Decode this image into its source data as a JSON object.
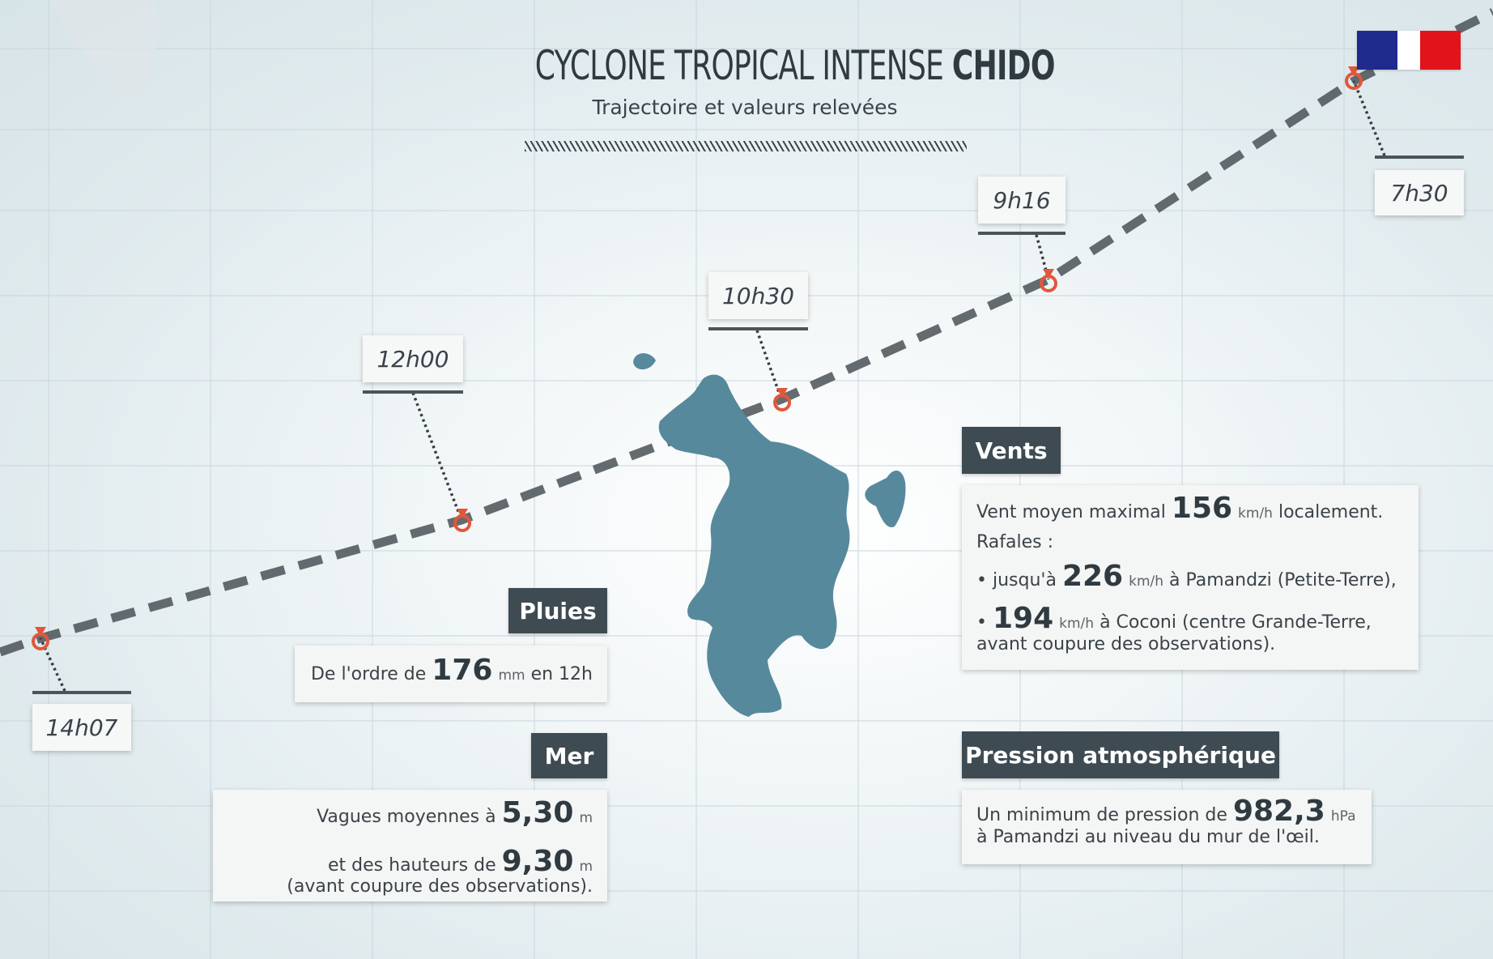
{
  "header": {
    "title_light": "CYCLONE TROPICAL INTENSE ",
    "title_bold": "CHIDO",
    "subtitle": "Trajectoire et valeurs relevées"
  },
  "times": [
    "7h30",
    "9h16",
    "10h30",
    "12h00",
    "14h07"
  ],
  "colors": {
    "marker": "#e2563a",
    "panel_header": "#3e4b52",
    "island": "#57899c",
    "track": "#4a5257"
  },
  "pluies": {
    "header": "Pluies",
    "prefix": "De l'ordre de",
    "value": "176",
    "unit": "mm",
    "suffix": "en 12h"
  },
  "mer": {
    "header": "Mer",
    "l1_prefix": "Vagues moyennes à",
    "l1_value": "5,30",
    "l1_unit": "m",
    "l2_prefix": "et des hauteurs de",
    "l2_value": "9,30",
    "l2_unit": "m",
    "l3": "(avant coupure des observations)."
  },
  "vents": {
    "header": "Vents",
    "l1_prefix": "Vent moyen maximal",
    "l1_value": "156",
    "l1_unit": "km/h",
    "l1_suffix": "localement.",
    "l2": "Rafales :",
    "l3_prefix": "• jusqu'à",
    "l3_value": "226",
    "l3_unit": "km/h",
    "l3_suffix": "à Pamandzi (Petite-Terre),",
    "l4_prefix": "•",
    "l4_value": "194",
    "l4_unit": "km/h",
    "l4_suffix": "à Coconi (centre Grande-Terre,",
    "l5": "avant coupure des observations)."
  },
  "pression": {
    "header": "Pression atmosphérique",
    "l1_prefix": "Un minimum de pression de",
    "l1_value": "982,3",
    "l1_unit": "hPa",
    "l2": "à Pamandzi au niveau du mur de l'œil."
  }
}
